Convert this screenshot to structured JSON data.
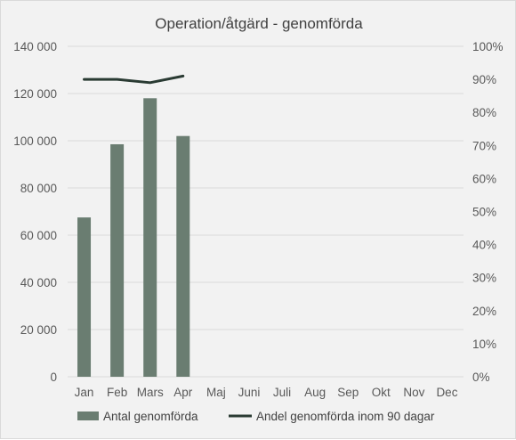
{
  "chart_data": {
    "type": "bar",
    "title": "Operation/åtgärd - genomförda",
    "categories": [
      "Jan",
      "Feb",
      "Mars",
      "Apr",
      "Maj",
      "Juni",
      "Juli",
      "Aug",
      "Sep",
      "Okt",
      "Nov",
      "Dec"
    ],
    "series": [
      {
        "name": "Antal genomförda",
        "type": "bar",
        "axis": "left",
        "color": "#6a7d71",
        "values": [
          67500,
          98500,
          118000,
          102000,
          null,
          null,
          null,
          null,
          null,
          null,
          null,
          null
        ]
      },
      {
        "name": "Andel genomförda inom 90 dagar",
        "type": "line",
        "axis": "right",
        "color": "#2a3b33",
        "values": [
          0.9,
          0.9,
          0.89,
          0.91,
          null,
          null,
          null,
          null,
          null,
          null,
          null,
          null
        ]
      }
    ],
    "y_left": {
      "ylim": [
        0,
        140000
      ],
      "ticks": [
        0,
        20000,
        40000,
        60000,
        80000,
        100000,
        120000,
        140000
      ],
      "tick_labels": [
        "0",
        "20 000",
        "40 000",
        "60 000",
        "80 000",
        "100 000",
        "120 000",
        "140 000"
      ]
    },
    "y_right": {
      "ylim": [
        0,
        1
      ],
      "ticks": [
        0,
        0.1,
        0.2,
        0.3,
        0.4,
        0.5,
        0.6,
        0.7,
        0.8,
        0.9,
        1.0
      ],
      "tick_labels": [
        "0%",
        "10%",
        "20%",
        "30%",
        "40%",
        "50%",
        "60%",
        "70%",
        "80%",
        "90%",
        "100%"
      ]
    },
    "grid": true,
    "legend_position": "bottom",
    "colors": {
      "background": "#f2f2f2",
      "grid": "#d9d9d9",
      "text": "#595959"
    }
  }
}
